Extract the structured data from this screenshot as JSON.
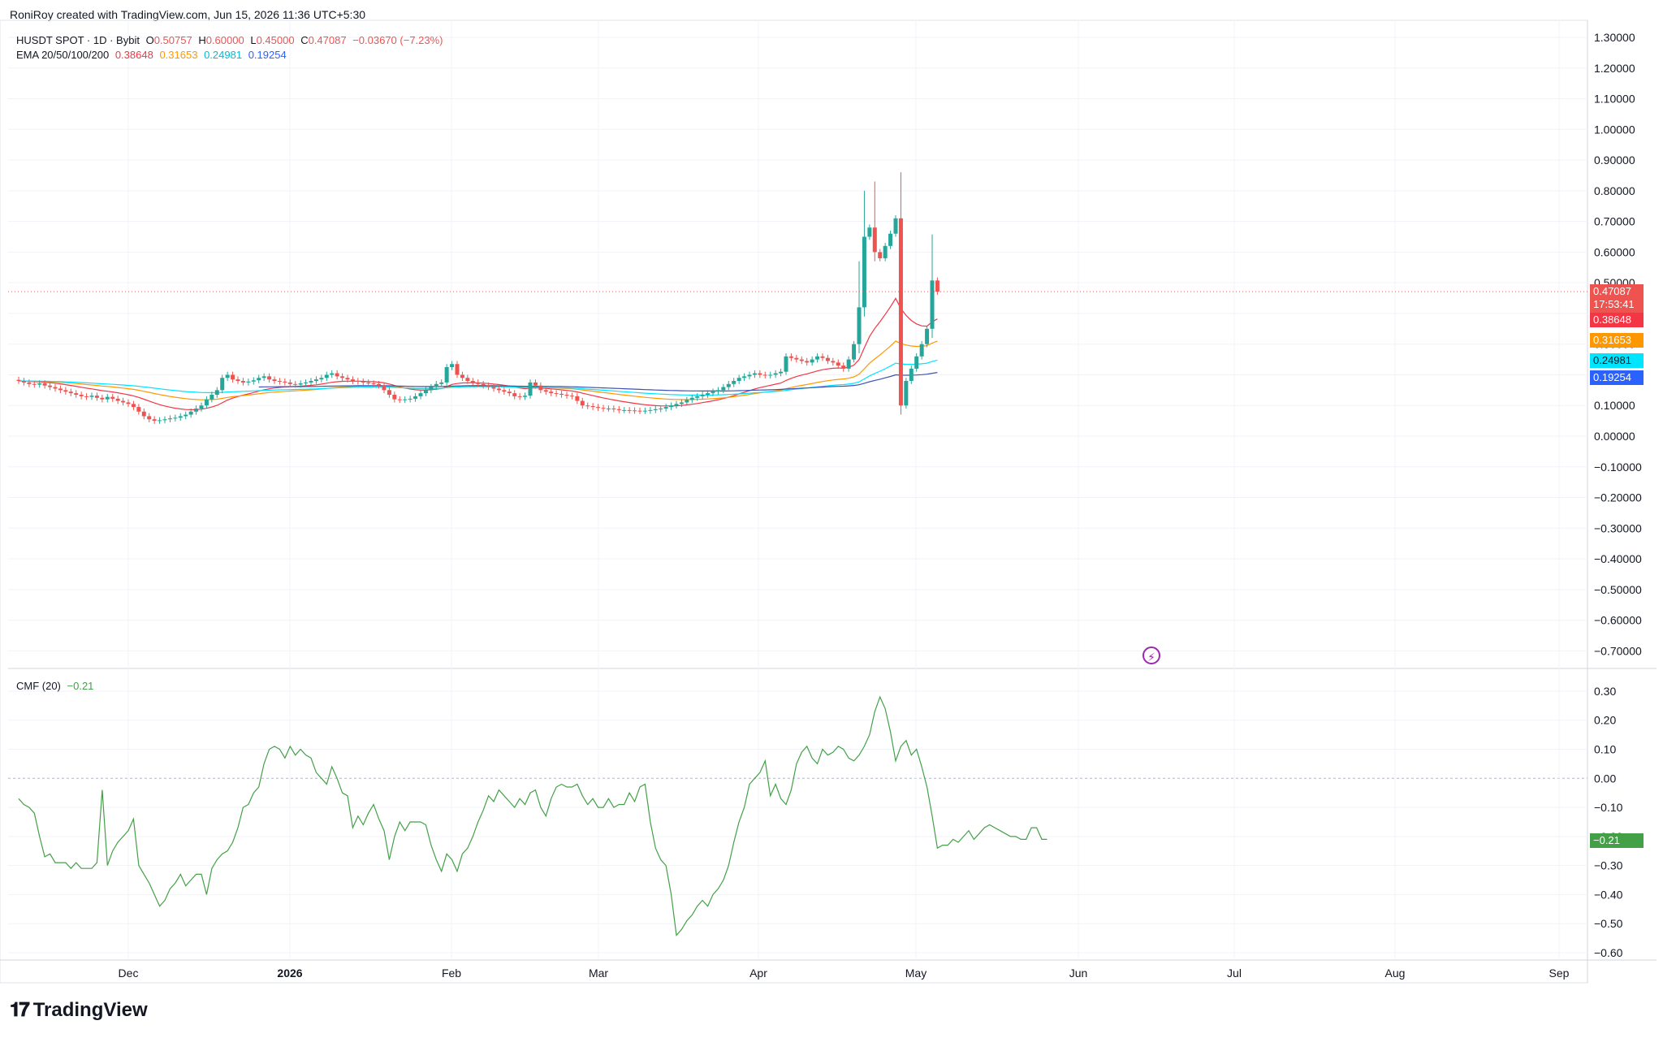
{
  "header": {
    "attribution": "RoniRoy created with TradingView.com, Jun 15, 2026 11:36 UTC+5:30"
  },
  "legend": {
    "symbol": "HUSDT SPOT · 1D · Bybit",
    "o_label": "O",
    "o": "0.50757",
    "h_label": "H",
    "h": "0.60000",
    "l_label": "L",
    "l": "0.45000",
    "c_label": "C",
    "c": "0.47087",
    "change": "−0.03670 (−7.23%)",
    "ema_label": "EMA 20/50/100/200",
    "ema20": "0.38648",
    "ema50": "0.31653",
    "ema100": "0.24981",
    "ema200": "0.19254",
    "cmf_label": "CMF (20)",
    "cmf_value": "−0.21"
  },
  "price_labels": {
    "last": "0.47087",
    "countdown": "17:53:41",
    "ema20": "0.38648",
    "ema50": "0.31653",
    "ema100": "0.24981",
    "ema200": "0.19254",
    "cmf": "−0.21"
  },
  "colors": {
    "up": "#26a69a",
    "down": "#ef5350",
    "ema20": "#f23645",
    "ema50": "#ff9800",
    "ema100": "#00e5ff",
    "ema200": "#2962ff",
    "cmf": "#43a047",
    "grid": "#f0f3fa",
    "text": "#131722",
    "axis": "#787b86"
  },
  "footer": {
    "brand": "TradingView",
    "logo_icon": "tradingview-logo-icon"
  },
  "icons": {
    "bolt": "lightning-bolt-icon"
  },
  "chart_data": [
    {
      "type": "candlestick",
      "title": "HUSDT SPOT · 1D · Bybit",
      "x_ticks": [
        "Dec",
        "2026",
        "Feb",
        "Mar",
        "Apr",
        "May",
        "Jun",
        "Jul",
        "Aug",
        "Sep"
      ],
      "y_ticks": [
        "1.30000",
        "1.20000",
        "1.10000",
        "1.00000",
        "0.90000",
        "0.80000",
        "0.70000",
        "0.60000",
        "0.50000",
        "0.40000",
        "0.30000",
        "0.20000",
        "0.10000",
        "0.00000",
        "−0.10000",
        "−0.20000",
        "−0.30000",
        "−0.40000",
        "−0.50000",
        "−0.60000",
        "−0.70000"
      ],
      "ylim": [
        -0.75,
        1.35
      ],
      "close": [
        0.18,
        0.175,
        0.17,
        0.168,
        0.172,
        0.165,
        0.16,
        0.155,
        0.15,
        0.145,
        0.14,
        0.135,
        0.13,
        0.128,
        0.132,
        0.125,
        0.12,
        0.128,
        0.122,
        0.115,
        0.11,
        0.105,
        0.095,
        0.08,
        0.065,
        0.055,
        0.05,
        0.052,
        0.055,
        0.058,
        0.06,
        0.065,
        0.07,
        0.08,
        0.09,
        0.1,
        0.12,
        0.135,
        0.15,
        0.19,
        0.2,
        0.185,
        0.18,
        0.175,
        0.178,
        0.182,
        0.19,
        0.195,
        0.185,
        0.18,
        0.178,
        0.175,
        0.17,
        0.168,
        0.172,
        0.175,
        0.18,
        0.185,
        0.19,
        0.2,
        0.205,
        0.195,
        0.19,
        0.185,
        0.18,
        0.178,
        0.175,
        0.172,
        0.17,
        0.165,
        0.15,
        0.135,
        0.12,
        0.118,
        0.12,
        0.122,
        0.13,
        0.14,
        0.15,
        0.16,
        0.17,
        0.175,
        0.225,
        0.235,
        0.2,
        0.19,
        0.18,
        0.175,
        0.17,
        0.165,
        0.16,
        0.155,
        0.15,
        0.145,
        0.14,
        0.13,
        0.128,
        0.132,
        0.175,
        0.165,
        0.15,
        0.145,
        0.14,
        0.138,
        0.135,
        0.132,
        0.13,
        0.115,
        0.1,
        0.098,
        0.095,
        0.092,
        0.09,
        0.09,
        0.088,
        0.085,
        0.085,
        0.084,
        0.083,
        0.082,
        0.083,
        0.085,
        0.088,
        0.09,
        0.095,
        0.1,
        0.105,
        0.11,
        0.118,
        0.125,
        0.13,
        0.135,
        0.14,
        0.145,
        0.15,
        0.16,
        0.17,
        0.18,
        0.19,
        0.195,
        0.2,
        0.205,
        0.2,
        0.198,
        0.2,
        0.205,
        0.21,
        0.26,
        0.255,
        0.25,
        0.245,
        0.24,
        0.25,
        0.26,
        0.255,
        0.245,
        0.24,
        0.23,
        0.22,
        0.25,
        0.3,
        0.42,
        0.65,
        0.68,
        0.6,
        0.58,
        0.62,
        0.66,
        0.71,
        0.1,
        0.18,
        0.22,
        0.26,
        0.3,
        0.35,
        0.5075,
        0.47087
      ]
    },
    {
      "type": "line",
      "title": "EMA 20/50/100/200",
      "series": [
        {
          "name": "EMA 20",
          "last": 0.38648
        },
        {
          "name": "EMA 50",
          "last": 0.31653
        },
        {
          "name": "EMA 100",
          "last": 0.24981
        },
        {
          "name": "EMA 200",
          "last": 0.19254
        }
      ]
    },
    {
      "type": "line",
      "title": "CMF (20)",
      "y_ticks": [
        "0.30",
        "0.20",
        "0.10",
        "0.00",
        "−0.10",
        "−0.20",
        "−0.30",
        "−0.40",
        "−0.50",
        "−0.60"
      ],
      "ylim": [
        -0.62,
        0.33
      ],
      "values": [
        -0.07,
        -0.09,
        -0.1,
        -0.12,
        -0.2,
        -0.27,
        -0.26,
        -0.29,
        -0.29,
        -0.29,
        -0.31,
        -0.29,
        -0.31,
        -0.31,
        -0.31,
        -0.29,
        -0.04,
        -0.3,
        -0.25,
        -0.22,
        -0.2,
        -0.18,
        -0.14,
        -0.3,
        -0.33,
        -0.36,
        -0.4,
        -0.44,
        -0.42,
        -0.38,
        -0.36,
        -0.33,
        -0.37,
        -0.35,
        -0.33,
        -0.33,
        -0.4,
        -0.31,
        -0.28,
        -0.26,
        -0.25,
        -0.22,
        -0.17,
        -0.1,
        -0.09,
        -0.05,
        -0.03,
        0.05,
        0.1,
        0.11,
        0.1,
        0.07,
        0.11,
        0.08,
        0.1,
        0.08,
        0.07,
        0.02,
        0.0,
        -0.02,
        0.04,
        0.0,
        -0.05,
        -0.06,
        -0.17,
        -0.13,
        -0.16,
        -0.12,
        -0.09,
        -0.14,
        -0.18,
        -0.28,
        -0.2,
        -0.15,
        -0.18,
        -0.15,
        -0.15,
        -0.15,
        -0.16,
        -0.23,
        -0.28,
        -0.32,
        -0.26,
        -0.28,
        -0.32,
        -0.26,
        -0.24,
        -0.2,
        -0.15,
        -0.11,
        -0.06,
        -0.08,
        -0.04,
        -0.06,
        -0.08,
        -0.1,
        -0.07,
        -0.09,
        -0.05,
        -0.04,
        -0.1,
        -0.13,
        -0.07,
        -0.03,
        -0.02,
        -0.03,
        -0.03,
        -0.02,
        -0.06,
        -0.09,
        -0.07,
        -0.1,
        -0.1,
        -0.07,
        -0.1,
        -0.09,
        -0.09,
        -0.05,
        -0.08,
        -0.03,
        -0.02,
        -0.15,
        -0.24,
        -0.28,
        -0.3,
        -0.4,
        -0.54,
        -0.52,
        -0.49,
        -0.47,
        -0.44,
        -0.42,
        -0.44,
        -0.4,
        -0.38,
        -0.35,
        -0.3,
        -0.22,
        -0.15,
        -0.1,
        -0.02,
        0.0,
        0.02,
        0.06,
        -0.06,
        -0.02,
        -0.07,
        -0.09,
        -0.04,
        0.05,
        0.09,
        0.11,
        0.07,
        0.05,
        0.1,
        0.08,
        0.09,
        0.11,
        0.1,
        0.07,
        0.06,
        0.08,
        0.11,
        0.15,
        0.23,
        0.28,
        0.24,
        0.16,
        0.06,
        0.11,
        0.13,
        0.08,
        0.1,
        0.04,
        -0.03,
        -0.13,
        -0.24,
        -0.23,
        -0.23,
        -0.21,
        -0.22,
        -0.2,
        -0.18,
        -0.21,
        -0.19,
        -0.17,
        -0.16,
        -0.17,
        -0.18,
        -0.19,
        -0.2,
        -0.2,
        -0.21,
        -0.21,
        -0.17,
        -0.17,
        -0.21,
        -0.21
      ]
    }
  ]
}
